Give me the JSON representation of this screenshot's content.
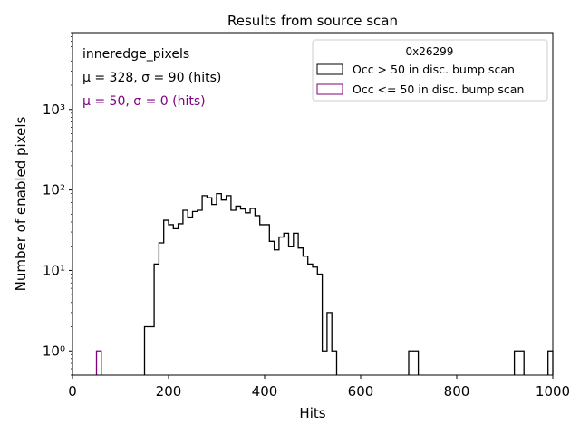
{
  "chart_data": {
    "type": "histogram",
    "title": "Results from source scan",
    "xlabel": "Hits",
    "ylabel": "Number of enabled pixels",
    "xlim": [
      0,
      1000
    ],
    "ylim": [
      0.5,
      9000
    ],
    "yscale": "log",
    "bin_width": 10,
    "grid": false,
    "x_ticks": [
      0,
      200,
      400,
      600,
      800,
      1000
    ],
    "y_ticks": [
      {
        "value": 1,
        "label": "10⁰"
      },
      {
        "value": 10,
        "label": "10¹"
      },
      {
        "value": 100,
        "label": "10²"
      },
      {
        "value": 1000,
        "label": "10³"
      }
    ],
    "legend": {
      "title": "0x26299",
      "placement": "top-right",
      "entries": [
        {
          "label": "Occ > 50 in disc. bump scan",
          "color": "#000000"
        },
        {
          "label": "Occ <= 50 in disc. bump scan",
          "color": "#800080"
        }
      ]
    },
    "annotations": [
      {
        "text": "inneredge_pixels",
        "color": "#000000"
      },
      {
        "text": "μ = 328, σ = 90 (hits)",
        "color": "#000000"
      },
      {
        "text": "μ = 50, σ = 0 (hits)",
        "color": "#800080"
      }
    ],
    "series": [
      {
        "color": "#000000",
        "bins": [
          [
            150,
            2
          ],
          [
            160,
            2
          ],
          [
            170,
            12
          ],
          [
            180,
            22
          ],
          [
            190,
            42
          ],
          [
            200,
            37
          ],
          [
            210,
            33
          ],
          [
            220,
            38
          ],
          [
            230,
            56
          ],
          [
            240,
            46
          ],
          [
            250,
            54
          ],
          [
            260,
            56
          ],
          [
            270,
            85
          ],
          [
            280,
            80
          ],
          [
            290,
            66
          ],
          [
            300,
            90
          ],
          [
            310,
            75
          ],
          [
            320,
            85
          ],
          [
            330,
            56
          ],
          [
            340,
            63
          ],
          [
            350,
            58
          ],
          [
            360,
            52
          ],
          [
            370,
            59
          ],
          [
            380,
            48
          ],
          [
            390,
            37
          ],
          [
            400,
            37
          ],
          [
            410,
            23
          ],
          [
            420,
            18
          ],
          [
            430,
            26
          ],
          [
            440,
            29
          ],
          [
            450,
            20
          ],
          [
            460,
            29
          ],
          [
            470,
            19
          ],
          [
            480,
            15
          ],
          [
            490,
            12
          ],
          [
            500,
            11
          ],
          [
            510,
            9
          ],
          [
            520,
            1
          ],
          [
            530,
            3
          ],
          [
            540,
            1
          ],
          [
            700,
            1
          ],
          [
            710,
            1
          ],
          [
            920,
            1
          ],
          [
            930,
            1
          ],
          [
            990,
            1
          ]
        ]
      },
      {
        "color": "#800080",
        "bins": [
          [
            50,
            1
          ]
        ]
      }
    ]
  }
}
